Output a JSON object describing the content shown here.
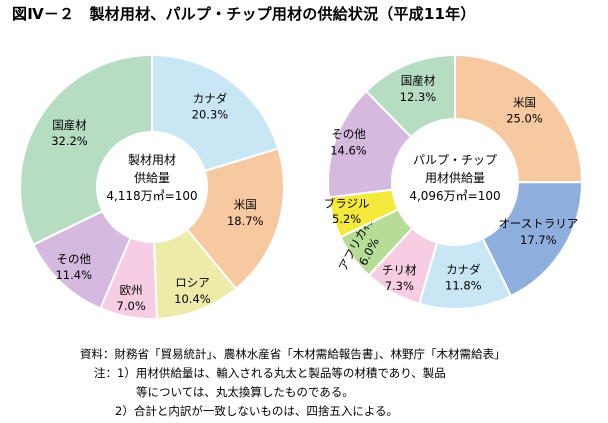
{
  "figure": {
    "title": "図Ⅳ－２　製材用材、パルプ・チップ用材の供給状況（平成11年）"
  },
  "notes": {
    "source": "資料：財務省「貿易統計」、農林水産省「木材需給報告書」、林野庁「木材需給表」",
    "note1_line1": "注：1）用材供給量は、輸入される丸太と製品等の材積であり、製品",
    "note1_line2": "等については、丸太換算したものである。",
    "note2": "2）合計と内訳が一致しないものは、四捨五入による。"
  },
  "chart_data": [
    {
      "type": "pie",
      "donut": true,
      "center_text": [
        "製材用材",
        "供給量",
        "4,118万㎥=100"
      ],
      "unit": "%",
      "start": "12 o'clock, clockwise",
      "slices": [
        {
          "label": "カナダ",
          "value": 20.3,
          "value_text": "20.3%",
          "color": "#c9e6f5"
        },
        {
          "label": "米国",
          "value": 18.7,
          "value_text": "18.7%",
          "color": "#f6c9a1"
        },
        {
          "label": "ロシア",
          "value": 10.4,
          "value_text": "10.4%",
          "color": "#ecebaa"
        },
        {
          "label": "欧州",
          "value": 7.0,
          "value_text": "7.0%",
          "color": "#f7cde3"
        },
        {
          "label": "その他",
          "value": 11.4,
          "value_text": "11.4%",
          "color": "#d5b9df"
        },
        {
          "label": "国産材",
          "value": 32.2,
          "value_text": "32.2%",
          "color": "#b6dcc1"
        }
      ]
    },
    {
      "type": "pie",
      "donut": true,
      "center_text": [
        "パルプ・チップ",
        "用材供給量",
        "4,096万㎥=100"
      ],
      "unit": "%",
      "start": "12 o'clock, clockwise",
      "slices": [
        {
          "label": "米国",
          "value": 25.0,
          "value_text": "25.0%",
          "color": "#f6c9a1"
        },
        {
          "label": "オーストラリア",
          "value": 17.7,
          "value_text": "17.7%",
          "color": "#8eaede"
        },
        {
          "label": "カナダ",
          "value": 11.8,
          "value_text": "11.8%",
          "color": "#c9e6f5"
        },
        {
          "label": "チリ材",
          "value": 7.3,
          "value_text": "7.3%",
          "color": "#f7cde3"
        },
        {
          "label": "アフリカ材",
          "value": 6.0,
          "value_text": "6.0%",
          "color": "#b5dd96"
        },
        {
          "label": "ブラジル",
          "value": 5.2,
          "value_text": "5.2%",
          "color": "#f5ea3c"
        },
        {
          "label": "その他",
          "value": 14.6,
          "value_text": "14.6%",
          "color": "#d5b9df"
        },
        {
          "label": "国産材",
          "value": 12.3,
          "value_text": "12.3%",
          "color": "#b6dcc1"
        }
      ]
    }
  ]
}
